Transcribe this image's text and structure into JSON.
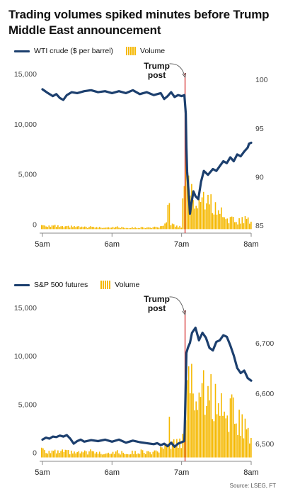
{
  "title": "Trading volumes spiked minutes before Trump Middle East announcement",
  "source": "Source: LSEG, FT",
  "colors": {
    "price": "#1c3f6e",
    "volume": "#f5b800",
    "post": "#d94040",
    "axis": "#888888",
    "tick": "#444444"
  },
  "chart_data": [
    {
      "type": "line",
      "legend": {
        "line_label": "WTI crude ($ per barrel)",
        "bar_label": "Volume",
        "placement": "top-left"
      },
      "annotation": {
        "label_line1": "Trump",
        "label_line2": "post",
        "time": 7.05
      },
      "x_ticks": [
        {
          "value": 5,
          "label": "5am"
        },
        {
          "value": 6,
          "label": "6am"
        },
        {
          "value": 7,
          "label": "7am"
        },
        {
          "value": 8,
          "label": "8am"
        }
      ],
      "xlim": [
        4.98,
        8.0
      ],
      "left_axis": {
        "label": "Volume",
        "ticks": [
          {
            "value": 0,
            "label": "0"
          },
          {
            "value": 5000,
            "label": "5,000"
          },
          {
            "value": 10000,
            "label": "10,000"
          },
          {
            "value": 15000,
            "label": "15,000"
          }
        ],
        "ylim": [
          -400,
          15500
        ]
      },
      "right_axis": {
        "label": "WTI crude ($ per barrel)",
        "ticks": [
          {
            "value": 85,
            "label": "85"
          },
          {
            "value": 90,
            "label": "90"
          },
          {
            "value": 95,
            "label": "95"
          },
          {
            "value": 100,
            "label": "100"
          }
        ],
        "ylim": [
          84.2,
          100.6
        ]
      },
      "price_series": {
        "name": "WTI crude ($ per barrel)",
        "points": [
          [
            5.0,
            99.0
          ],
          [
            5.08,
            98.6
          ],
          [
            5.15,
            98.3
          ],
          [
            5.2,
            98.5
          ],
          [
            5.25,
            98.1
          ],
          [
            5.3,
            97.9
          ],
          [
            5.35,
            98.4
          ],
          [
            5.42,
            98.7
          ],
          [
            5.5,
            98.6
          ],
          [
            5.6,
            98.8
          ],
          [
            5.7,
            98.9
          ],
          [
            5.8,
            98.7
          ],
          [
            5.9,
            98.8
          ],
          [
            6.0,
            98.6
          ],
          [
            6.1,
            98.8
          ],
          [
            6.2,
            98.6
          ],
          [
            6.3,
            98.9
          ],
          [
            6.4,
            98.5
          ],
          [
            6.5,
            98.7
          ],
          [
            6.6,
            98.4
          ],
          [
            6.7,
            98.6
          ],
          [
            6.75,
            98.0
          ],
          [
            6.8,
            98.3
          ],
          [
            6.85,
            98.7
          ],
          [
            6.9,
            98.2
          ],
          [
            6.95,
            98.4
          ],
          [
            7.0,
            98.3
          ],
          [
            7.04,
            98.4
          ],
          [
            7.06,
            96.5
          ],
          [
            7.07,
            93.0
          ],
          [
            7.08,
            90.5
          ],
          [
            7.1,
            88.5
          ],
          [
            7.12,
            86.2
          ],
          [
            7.14,
            87.2
          ],
          [
            7.17,
            88.5
          ],
          [
            7.2,
            88.0
          ],
          [
            7.24,
            87.7
          ],
          [
            7.28,
            89.5
          ],
          [
            7.32,
            90.6
          ],
          [
            7.38,
            90.2
          ],
          [
            7.45,
            90.8
          ],
          [
            7.5,
            90.6
          ],
          [
            7.55,
            91.1
          ],
          [
            7.6,
            91.6
          ],
          [
            7.65,
            91.4
          ],
          [
            7.7,
            92.0
          ],
          [
            7.75,
            91.6
          ],
          [
            7.8,
            92.3
          ],
          [
            7.85,
            92.1
          ],
          [
            7.9,
            92.6
          ],
          [
            7.95,
            93.0
          ],
          [
            7.97,
            93.4
          ],
          [
            8.0,
            93.5
          ]
        ]
      },
      "volume_series": {
        "name": "Volume",
        "points": [
          [
            5.0,
            400
          ],
          [
            5.1,
            350
          ],
          [
            5.2,
            280
          ],
          [
            5.3,
            200
          ],
          [
            5.4,
            250
          ],
          [
            5.5,
            220
          ],
          [
            5.6,
            180
          ],
          [
            5.7,
            210
          ],
          [
            5.8,
            170
          ],
          [
            5.9,
            190
          ],
          [
            6.0,
            230
          ],
          [
            6.1,
            180
          ],
          [
            6.2,
            150
          ],
          [
            6.3,
            140
          ],
          [
            6.4,
            160
          ],
          [
            6.5,
            150
          ],
          [
            6.6,
            170
          ],
          [
            6.7,
            210
          ],
          [
            6.78,
            500
          ],
          [
            6.81,
            2900
          ],
          [
            6.84,
            500
          ],
          [
            6.9,
            300
          ],
          [
            7.0,
            200
          ],
          [
            7.05,
            12500
          ],
          [
            7.08,
            5200
          ],
          [
            7.12,
            3800
          ],
          [
            7.2,
            2600
          ],
          [
            7.3,
            2800
          ],
          [
            7.36,
            3200
          ],
          [
            7.45,
            2200
          ],
          [
            7.55,
            1800
          ],
          [
            7.65,
            1100
          ],
          [
            7.75,
            800
          ],
          [
            7.85,
            900
          ],
          [
            7.95,
            1000
          ],
          [
            8.0,
            800
          ]
        ]
      }
    },
    {
      "type": "line",
      "legend": {
        "line_label": "S&P 500 futures",
        "bar_label": "Volume",
        "placement": "top-left"
      },
      "annotation": {
        "label_line1": "Trump",
        "label_line2": "post",
        "time": 7.05
      },
      "x_ticks": [
        {
          "value": 5,
          "label": "5am"
        },
        {
          "value": 6,
          "label": "6am"
        },
        {
          "value": 7,
          "label": "7am"
        },
        {
          "value": 8,
          "label": "8am"
        }
      ],
      "xlim": [
        4.98,
        8.0
      ],
      "left_axis": {
        "label": "Volume",
        "ticks": [
          {
            "value": 0,
            "label": "0"
          },
          {
            "value": 5000,
            "label": "5,000"
          },
          {
            "value": 10000,
            "label": "10,000"
          },
          {
            "value": 15000,
            "label": "15,000"
          }
        ],
        "ylim": [
          -400,
          15500
        ]
      },
      "right_axis": {
        "label": "S&P 500 futures",
        "ticks": [
          {
            "value": 6500,
            "label": "6,500"
          },
          {
            "value": 6600,
            "label": "6,600"
          },
          {
            "value": 6700,
            "label": "6,700"
          }
        ],
        "ylim": [
          6465,
          6770
        ]
      },
      "price_series": {
        "name": "S&P 500 futures",
        "points": [
          [
            5.0,
            6508
          ],
          [
            5.05,
            6512
          ],
          [
            5.1,
            6510
          ],
          [
            5.15,
            6514
          ],
          [
            5.2,
            6513
          ],
          [
            5.25,
            6516
          ],
          [
            5.3,
            6514
          ],
          [
            5.35,
            6517
          ],
          [
            5.4,
            6510
          ],
          [
            5.45,
            6500
          ],
          [
            5.5,
            6505
          ],
          [
            5.55,
            6508
          ],
          [
            5.6,
            6504
          ],
          [
            5.7,
            6507
          ],
          [
            5.8,
            6505
          ],
          [
            5.9,
            6508
          ],
          [
            6.0,
            6504
          ],
          [
            6.1,
            6508
          ],
          [
            6.2,
            6502
          ],
          [
            6.3,
            6506
          ],
          [
            6.4,
            6503
          ],
          [
            6.5,
            6501
          ],
          [
            6.6,
            6499
          ],
          [
            6.65,
            6501
          ],
          [
            6.7,
            6497
          ],
          [
            6.75,
            6500
          ],
          [
            6.8,
            6495
          ],
          [
            6.85,
            6502
          ],
          [
            6.9,
            6494
          ],
          [
            6.95,
            6500
          ],
          [
            7.0,
            6503
          ],
          [
            7.04,
            6505
          ],
          [
            7.05,
            6560
          ],
          [
            7.07,
            6680
          ],
          [
            7.09,
            6690
          ],
          [
            7.12,
            6700
          ],
          [
            7.15,
            6720
          ],
          [
            7.2,
            6730
          ],
          [
            7.25,
            6705
          ],
          [
            7.3,
            6720
          ],
          [
            7.35,
            6710
          ],
          [
            7.4,
            6690
          ],
          [
            7.45,
            6685
          ],
          [
            7.5,
            6702
          ],
          [
            7.55,
            6705
          ],
          [
            7.6,
            6715
          ],
          [
            7.65,
            6712
          ],
          [
            7.7,
            6695
          ],
          [
            7.75,
            6675
          ],
          [
            7.8,
            6650
          ],
          [
            7.85,
            6640
          ],
          [
            7.9,
            6645
          ],
          [
            7.95,
            6630
          ],
          [
            8.0,
            6625
          ]
        ]
      },
      "volume_series": {
        "name": "Volume",
        "points": [
          [
            5.0,
            1000
          ],
          [
            5.05,
            600
          ],
          [
            5.1,
            700
          ],
          [
            5.2,
            500
          ],
          [
            5.3,
            600
          ],
          [
            5.4,
            500
          ],
          [
            5.5,
            450
          ],
          [
            5.6,
            500
          ],
          [
            5.7,
            600
          ],
          [
            5.8,
            450
          ],
          [
            5.9,
            500
          ],
          [
            6.0,
            600
          ],
          [
            6.1,
            500
          ],
          [
            6.2,
            450
          ],
          [
            6.3,
            500
          ],
          [
            6.4,
            600
          ],
          [
            6.5,
            550
          ],
          [
            6.6,
            500
          ],
          [
            6.7,
            800
          ],
          [
            6.8,
            1000
          ],
          [
            6.82,
            4500
          ],
          [
            6.84,
            1200
          ],
          [
            6.9,
            1500
          ],
          [
            7.0,
            1400
          ],
          [
            7.05,
            4000
          ],
          [
            7.07,
            9500
          ],
          [
            7.1,
            8000
          ],
          [
            7.15,
            7500
          ],
          [
            7.2,
            6500
          ],
          [
            7.25,
            6000
          ],
          [
            7.3,
            7000
          ],
          [
            7.35,
            6500
          ],
          [
            7.4,
            6800
          ],
          [
            7.45,
            5500
          ],
          [
            7.5,
            6200
          ],
          [
            7.55,
            5000
          ],
          [
            7.6,
            5800
          ],
          [
            7.65,
            4500
          ],
          [
            7.7,
            5000
          ],
          [
            7.75,
            4000
          ],
          [
            7.8,
            4200
          ],
          [
            7.85,
            3500
          ],
          [
            7.9,
            3000
          ],
          [
            7.95,
            2600
          ],
          [
            8.0,
            2200
          ]
        ]
      }
    }
  ]
}
